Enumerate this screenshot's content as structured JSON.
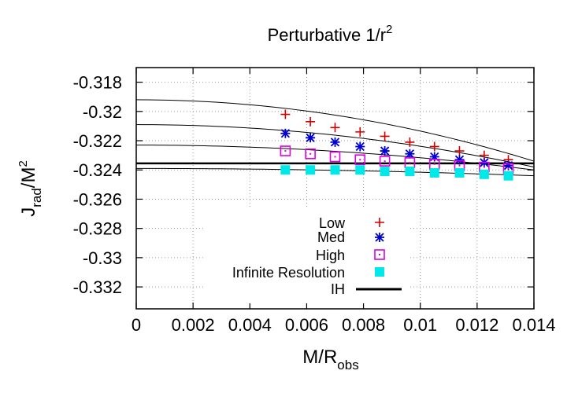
{
  "chart_data": {
    "type": "scatter",
    "title": "Perturbative 1/r",
    "title_superscript": "2",
    "xlabel_main": "M/R",
    "xlabel_sub": "obs",
    "ylabel_main": "J",
    "ylabel_sub": "rad",
    "ylabel_tail": "/M",
    "ylabel_sup": "2",
    "xlim": [
      0,
      0.014
    ],
    "ylim": [
      -0.3335,
      -0.317
    ],
    "x_ticks": [
      {
        "value": 0,
        "label": "0"
      },
      {
        "value": 0.002,
        "label": "0.002"
      },
      {
        "value": 0.004,
        "label": "0.004"
      },
      {
        "value": 0.006,
        "label": "0.006"
      },
      {
        "value": 0.008,
        "label": "0.008"
      },
      {
        "value": 0.01,
        "label": "0.01"
      },
      {
        "value": 0.012,
        "label": "0.012"
      },
      {
        "value": 0.014,
        "label": "0.014"
      }
    ],
    "y_ticks": [
      {
        "value": -0.318,
        "label": "-0.318"
      },
      {
        "value": -0.32,
        "label": "-0.32"
      },
      {
        "value": -0.322,
        "label": "-0.322"
      },
      {
        "value": -0.324,
        "label": "-0.324"
      },
      {
        "value": -0.326,
        "label": "-0.326"
      },
      {
        "value": -0.328,
        "label": "-0.328"
      },
      {
        "value": -0.33,
        "label": "-0.33"
      },
      {
        "value": -0.332,
        "label": "-0.332"
      }
    ],
    "grid": true,
    "legend_position": "bottom-right",
    "series": [
      {
        "name": "Low",
        "marker": "plus",
        "color": "#d40000",
        "x": [
          0.00525,
          0.00613,
          0.007,
          0.00788,
          0.00875,
          0.00963,
          0.0105,
          0.01138,
          0.01225,
          0.0131
        ],
        "y": [
          -0.3202,
          -0.3207,
          -0.3211,
          -0.3214,
          -0.3217,
          -0.3221,
          -0.3224,
          -0.3227,
          -0.323,
          -0.3233
        ]
      },
      {
        "name": "Med",
        "marker": "star",
        "color": "#0000d4",
        "x": [
          0.00525,
          0.00613,
          0.007,
          0.00788,
          0.00875,
          0.00963,
          0.0105,
          0.01138,
          0.01225,
          0.0131
        ],
        "y": [
          -0.3215,
          -0.3218,
          -0.3221,
          -0.3224,
          -0.3227,
          -0.3229,
          -0.3231,
          -0.3233,
          -0.3235,
          -0.3237
        ]
      },
      {
        "name": "High",
        "marker": "square-dot",
        "color": "#e000e0",
        "x": [
          0.00525,
          0.00613,
          0.007,
          0.00788,
          0.00875,
          0.00963,
          0.0105,
          0.01138,
          0.01225,
          0.0131
        ],
        "y": [
          -0.3227,
          -0.3229,
          -0.3231,
          -0.3233,
          -0.3234,
          -0.3235,
          -0.3236,
          -0.3237,
          -0.3238,
          -0.3239
        ]
      },
      {
        "name": "Infinite Resolution",
        "marker": "filled-square",
        "color": "#00e8e8",
        "x": [
          0.00525,
          0.00613,
          0.007,
          0.00788,
          0.00875,
          0.00963,
          0.0105,
          0.01138,
          0.01225,
          0.0131
        ],
        "y": [
          -0.324,
          -0.324,
          -0.324,
          -0.324,
          -0.3241,
          -0.3241,
          -0.3242,
          -0.3242,
          -0.3243,
          -0.3244
        ]
      },
      {
        "name": "IH",
        "marker": "line",
        "color": "#000000",
        "y_const": -0.32355
      }
    ],
    "fits": [
      {
        "series": "Low",
        "y0": -0.3192,
        "y_end": -0.3234
      },
      {
        "series": "Med",
        "y0": -0.3209,
        "y_end": -0.3238
      },
      {
        "series": "High",
        "y0": -0.3223,
        "y_end": -0.324
      },
      {
        "series": "Infinite Resolution",
        "y0": -0.3239,
        "y_end": -0.3244
      }
    ]
  }
}
